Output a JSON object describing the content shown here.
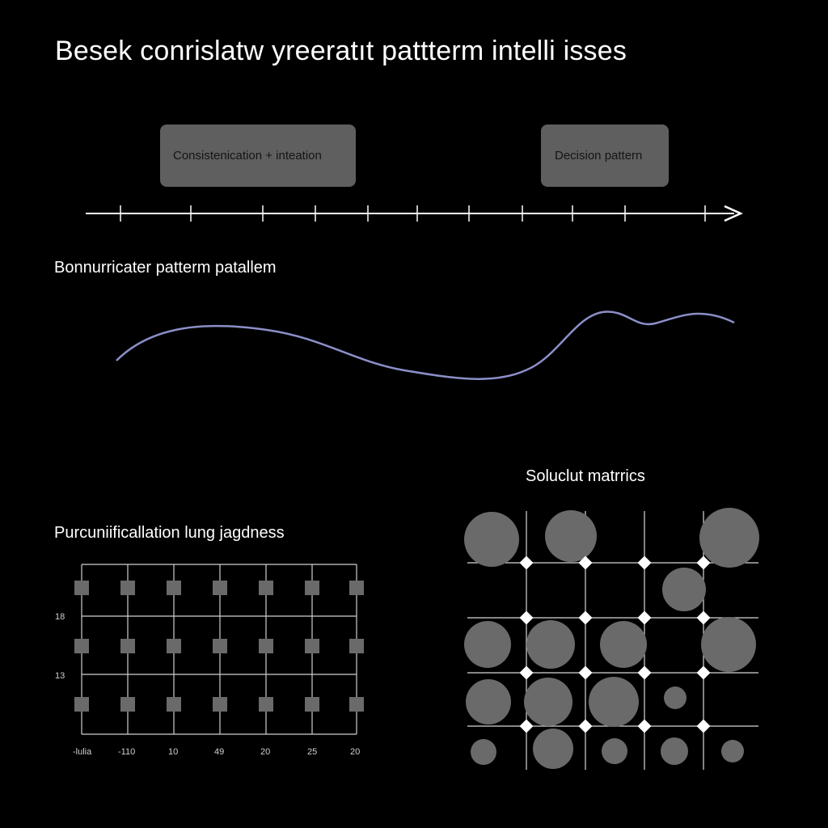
{
  "title": "Besek conrislatw yreeratıt pattterm intelli isses",
  "timeline": {
    "boxes": [
      {
        "label": "Consistenication + inteation"
      },
      {
        "label": "Decision pattern"
      }
    ]
  },
  "wave": {
    "label": "Bonnurricater patterm patallem",
    "stroke_color": "#8c8fc8"
  },
  "grid_chart": {
    "label": "Purcuniificallation lung jagdness",
    "y_ticks": [
      "18",
      "13"
    ],
    "x_ticks": [
      "-lulia",
      "-110",
      "10",
      "49",
      "20",
      "25",
      "20"
    ],
    "marker_color": "#6a6a6a"
  },
  "matrix": {
    "label": "Soluclut matrrics",
    "circle_color": "#6a6a6a",
    "node_color": "#ffffff"
  }
}
